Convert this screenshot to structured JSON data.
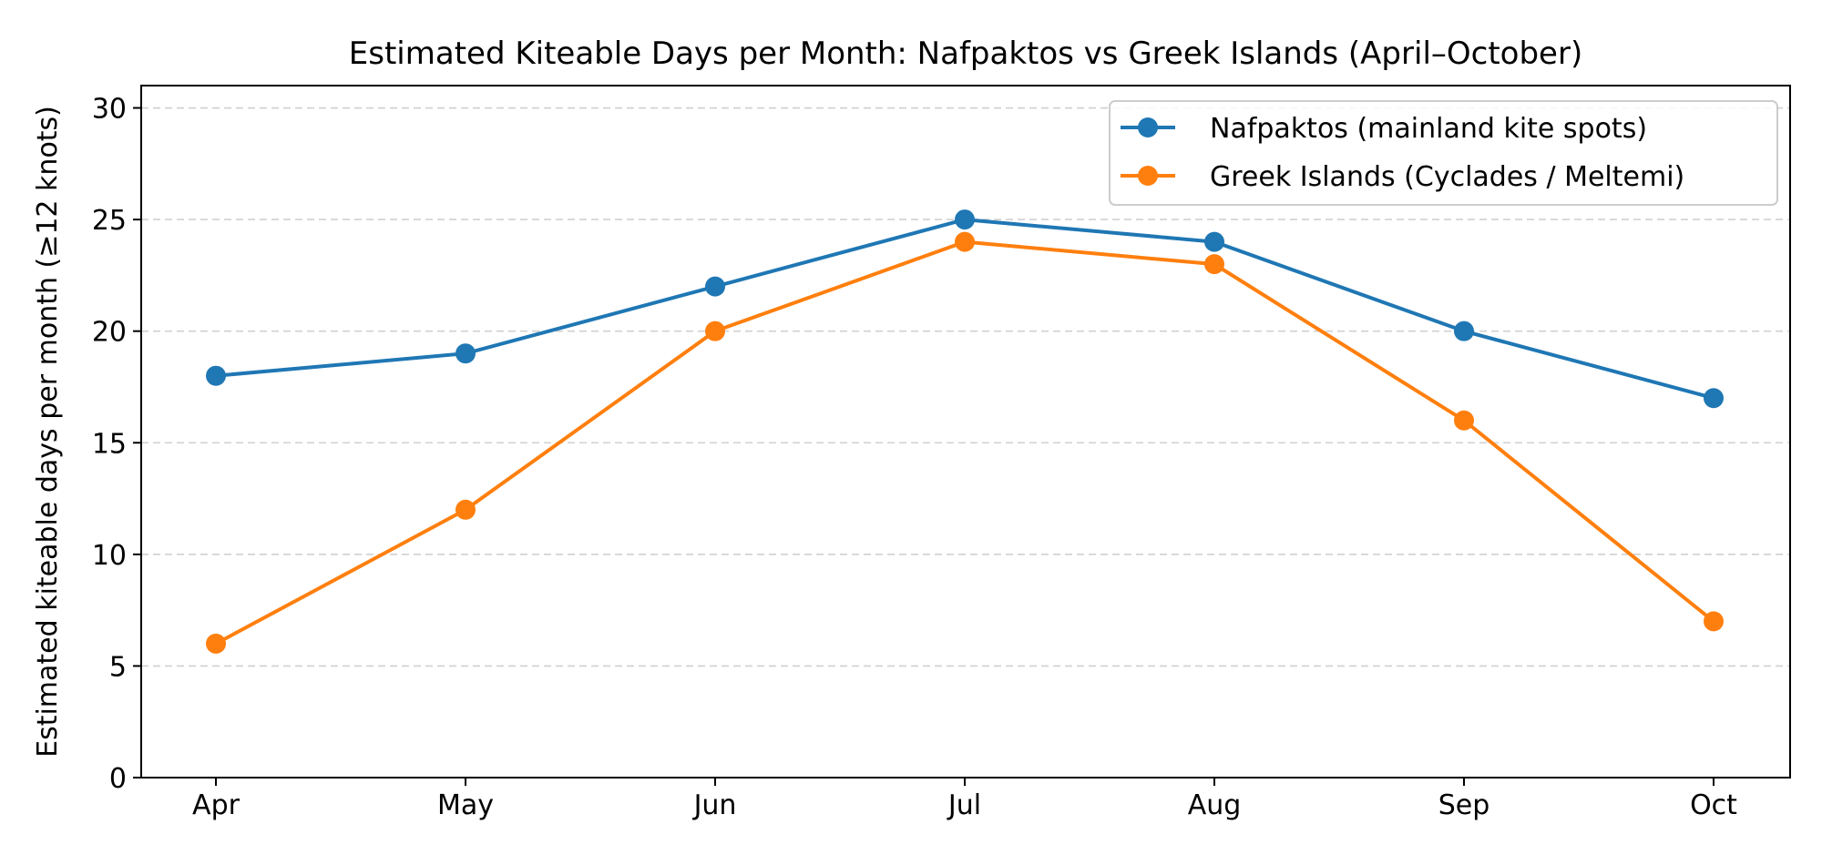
{
  "chart_data": {
    "type": "line",
    "title": "Estimated Kiteable Days per Month: Nafpaktos vs Greek Islands (April–October)",
    "xlabel": "",
    "ylabel": "Estimated kiteable days per month (≥12 knots)",
    "categories": [
      "Apr",
      "May",
      "Jun",
      "Jul",
      "Aug",
      "Sep",
      "Oct"
    ],
    "ylim": [
      0,
      31
    ],
    "yticks": [
      0,
      5,
      10,
      15,
      20,
      25,
      30
    ],
    "grid": "y-dashed",
    "legend_position": "top-right",
    "series": [
      {
        "name": "Nafpaktos (mainland kite spots)",
        "color": "#1f77b4",
        "marker": "circle",
        "values": [
          18,
          19,
          22,
          25,
          24,
          20,
          17
        ]
      },
      {
        "name": "Greek Islands (Cyclades / Meltemi)",
        "color": "#ff7f0e",
        "marker": "circle",
        "values": [
          6,
          12,
          20,
          24,
          23,
          16,
          7
        ]
      }
    ]
  }
}
